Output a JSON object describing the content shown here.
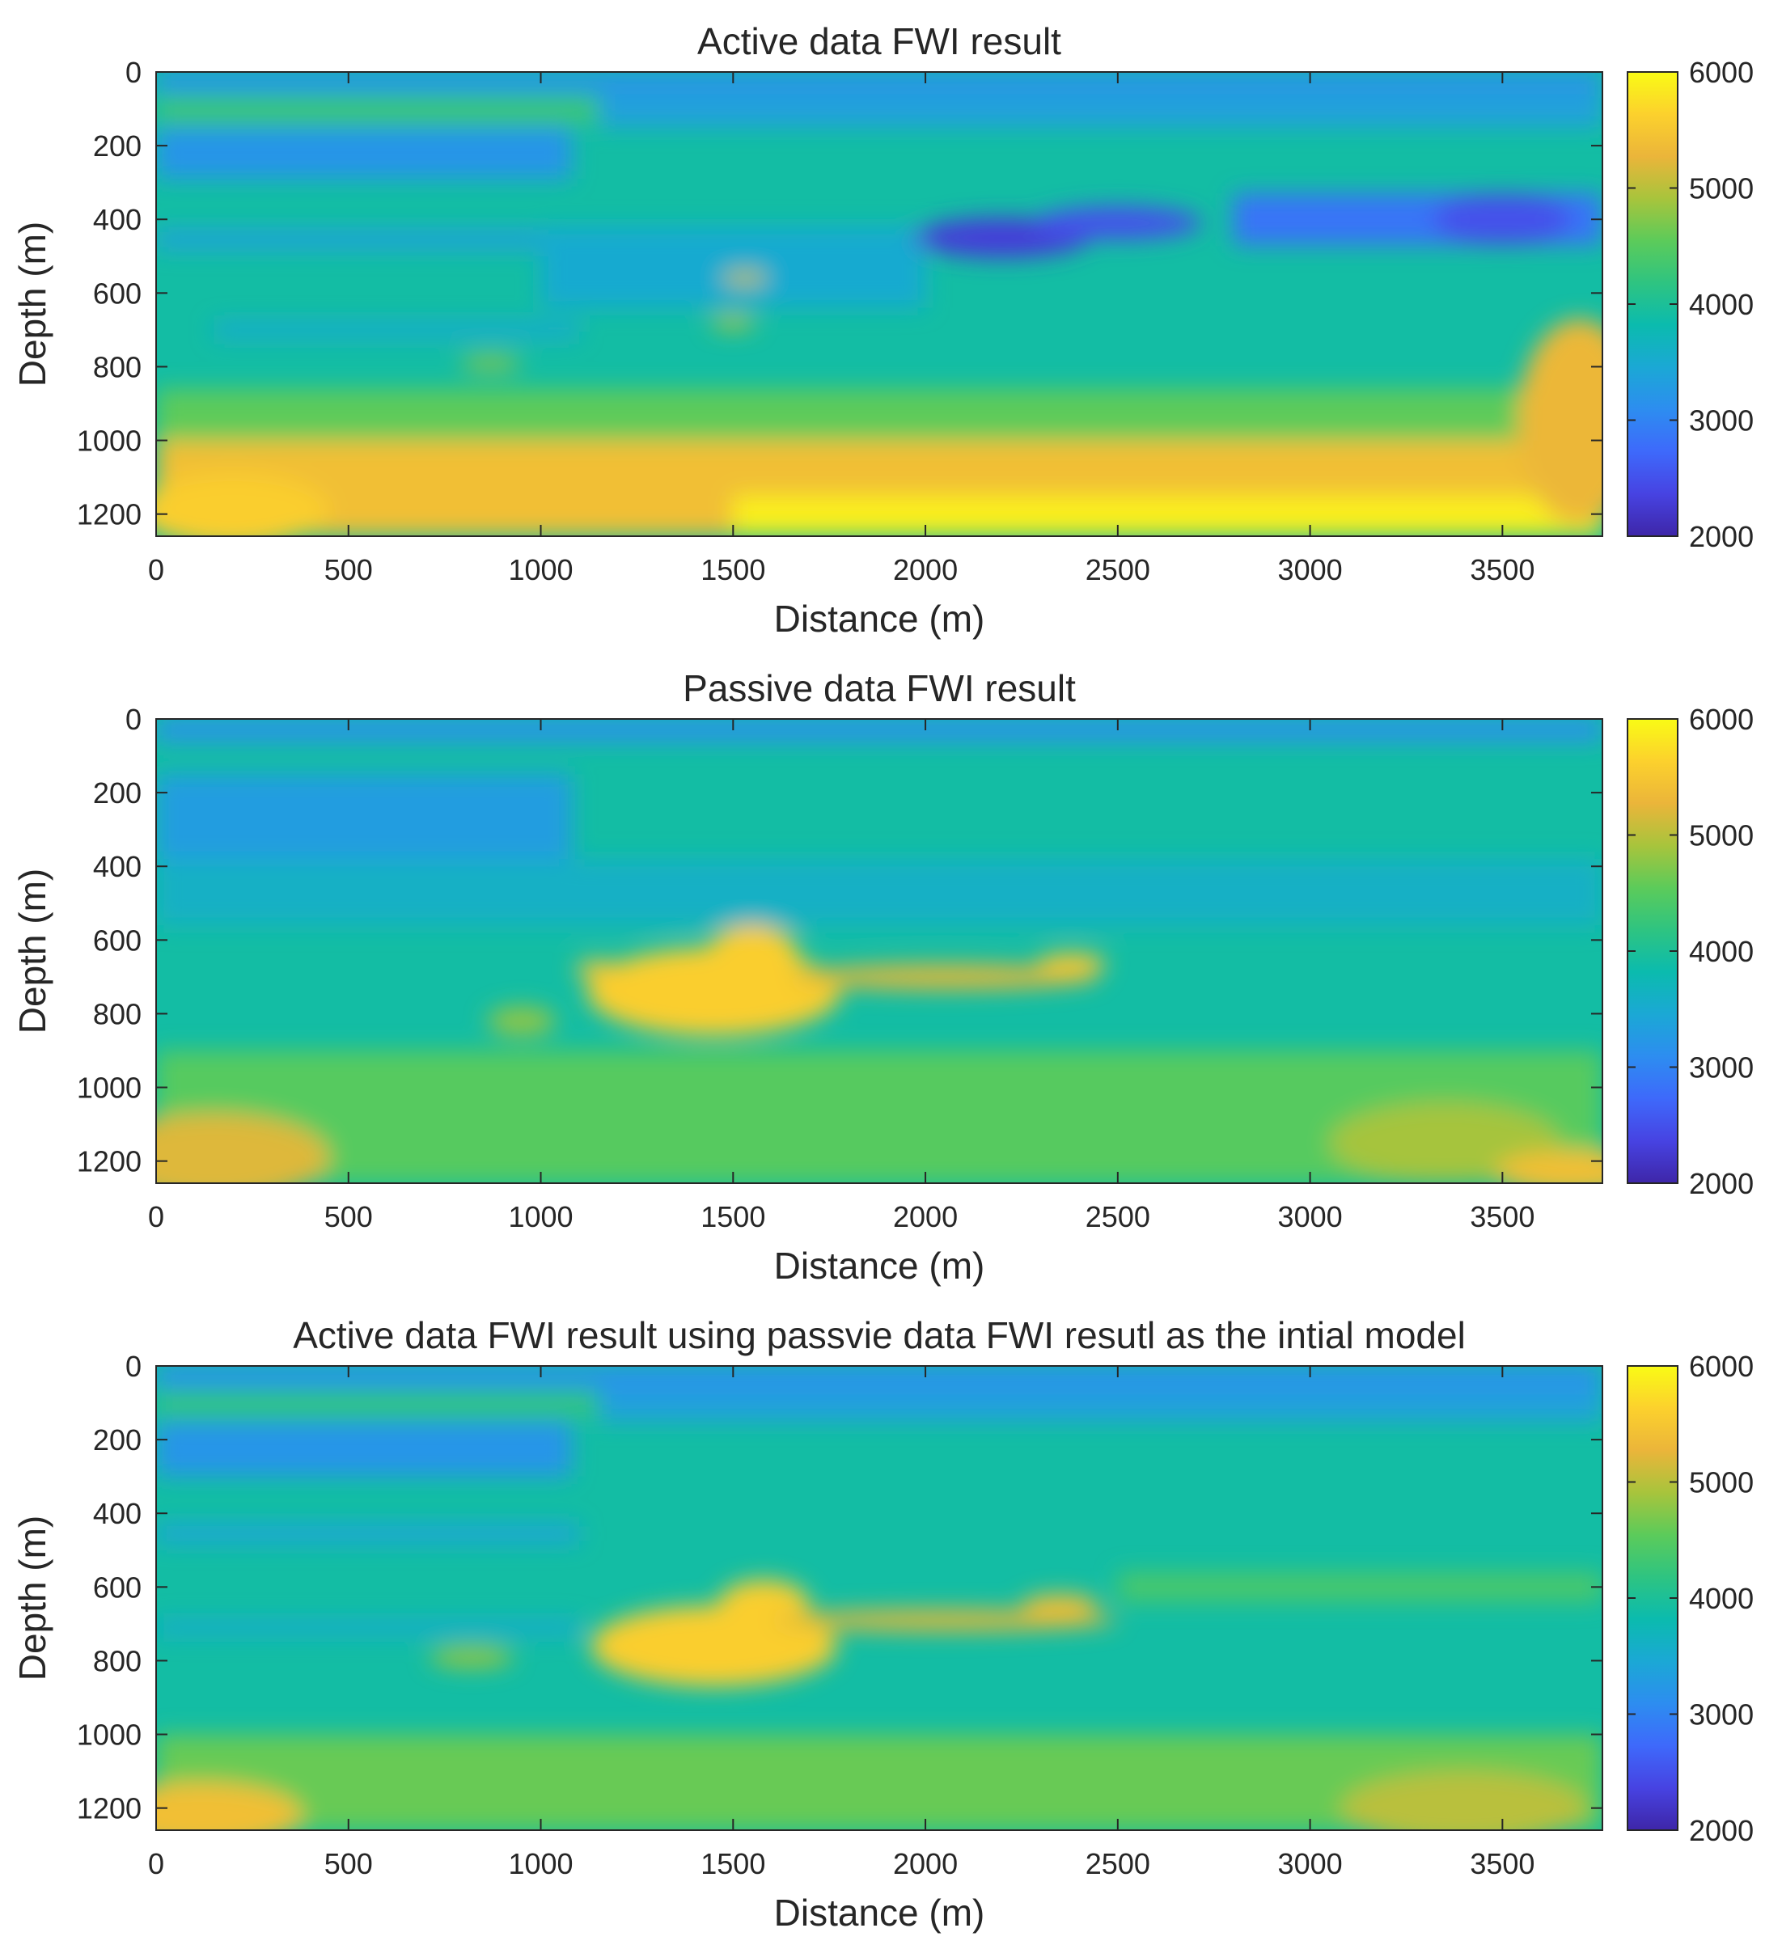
{
  "colormap": [
    "#3e26a8",
    "#4743e2",
    "#3e69fb",
    "#2d8df0",
    "#1ba8d5",
    "#0bbbae",
    "#2ec481",
    "#5ccb5a",
    "#a8c43c",
    "#ebb53a",
    "#fcd12d",
    "#f9fb15"
  ],
  "chart_data": [
    {
      "type": "heatmap",
      "title": "Active data FWI result",
      "xlabel": "Distance (m)",
      "ylabel": "Depth (m)",
      "xlim": [
        0,
        3760
      ],
      "ylim": [
        0,
        1260
      ],
      "y_reversed": true,
      "x_ticks": [
        0,
        500,
        1000,
        1500,
        2000,
        2500,
        3000,
        3500
      ],
      "y_ticks": [
        0,
        200,
        400,
        600,
        800,
        1000,
        1200
      ],
      "colorbar": {
        "min": 2000,
        "max": 6000,
        "ticks": [
          2000,
          3000,
          4000,
          5000,
          6000
        ]
      },
      "background_value": 3900,
      "features": [
        {
          "kind": "band",
          "x0": 0,
          "x1": 3760,
          "y0": 0,
          "y1": 55,
          "value": 3150
        },
        {
          "kind": "band",
          "x0": 0,
          "x1": 1150,
          "y0": 70,
          "y1": 140,
          "value": 4300
        },
        {
          "kind": "band",
          "x0": 1150,
          "x1": 3760,
          "y0": 60,
          "y1": 150,
          "value": 3350
        },
        {
          "kind": "band",
          "x0": 0,
          "x1": 1080,
          "y0": 150,
          "y1": 290,
          "value": 3200
        },
        {
          "kind": "band",
          "x0": 0,
          "x1": 1100,
          "y0": 430,
          "y1": 480,
          "value": 3350
        },
        {
          "kind": "band",
          "x0": 150,
          "x1": 1100,
          "y0": 680,
          "y1": 720,
          "value": 3450
        },
        {
          "kind": "band",
          "x0": 1000,
          "x1": 2000,
          "y0": 420,
          "y1": 640,
          "value": 3500
        },
        {
          "kind": "blob",
          "x": 2200,
          "y": 450,
          "rx": 230,
          "ry": 55,
          "value": 2300
        },
        {
          "kind": "blob",
          "x": 2500,
          "y": 410,
          "rx": 220,
          "ry": 45,
          "value": 2500
        },
        {
          "kind": "band",
          "x0": 2800,
          "x1": 3760,
          "y0": 330,
          "y1": 470,
          "value": 2850
        },
        {
          "kind": "blob",
          "x": 3500,
          "y": 400,
          "rx": 180,
          "ry": 70,
          "value": 2500
        },
        {
          "kind": "blob",
          "x": 1530,
          "y": 560,
          "rx": 60,
          "ry": 20,
          "value": 5000
        },
        {
          "kind": "blob",
          "x": 1500,
          "y": 680,
          "rx": 60,
          "ry": 20,
          "value": 4900
        },
        {
          "kind": "blob",
          "x": 870,
          "y": 790,
          "rx": 80,
          "ry": 20,
          "value": 4800
        },
        {
          "kind": "band",
          "x0": 0,
          "x1": 3760,
          "y0": 860,
          "y1": 1000,
          "value": 4550
        },
        {
          "kind": "band",
          "x0": 0,
          "x1": 3760,
          "y0": 1000,
          "y1": 1260,
          "value": 5400
        },
        {
          "kind": "blob",
          "x": 200,
          "y": 1190,
          "rx": 250,
          "ry": 100,
          "value": 5600
        },
        {
          "kind": "band",
          "x0": 1500,
          "x1": 3760,
          "y0": 1150,
          "y1": 1260,
          "value": 5900
        },
        {
          "kind": "blob",
          "x": 3700,
          "y": 950,
          "rx": 160,
          "ry": 280,
          "value": 5300
        }
      ]
    },
    {
      "type": "heatmap",
      "title": "Passive data FWI result",
      "xlabel": "Distance (m)",
      "ylabel": "Depth (m)",
      "xlim": [
        0,
        3760
      ],
      "ylim": [
        0,
        1260
      ],
      "y_reversed": true,
      "x_ticks": [
        0,
        500,
        1000,
        1500,
        2000,
        2500,
        3000,
        3500
      ],
      "y_ticks": [
        0,
        200,
        400,
        600,
        800,
        1000,
        1200
      ],
      "colorbar": {
        "min": 2000,
        "max": 6000,
        "ticks": [
          2000,
          3000,
          4000,
          5000,
          6000
        ]
      },
      "background_value": 3900,
      "features": [
        {
          "kind": "band",
          "x0": 0,
          "x1": 3760,
          "y0": 0,
          "y1": 60,
          "value": 3150
        },
        {
          "kind": "band",
          "x0": 0,
          "x1": 1080,
          "y0": 150,
          "y1": 380,
          "value": 3300
        },
        {
          "kind": "band",
          "x0": 0,
          "x1": 3760,
          "y0": 380,
          "y1": 560,
          "value": 3600
        },
        {
          "kind": "blob",
          "x": 1450,
          "y": 740,
          "rx": 330,
          "ry": 120,
          "value": 5600
        },
        {
          "kind": "blob",
          "x": 1550,
          "y": 640,
          "rx": 120,
          "ry": 80,
          "value": 5600
        },
        {
          "kind": "blob",
          "x": 2050,
          "y": 700,
          "rx": 400,
          "ry": 35,
          "value": 5200
        },
        {
          "kind": "blob",
          "x": 2380,
          "y": 665,
          "rx": 90,
          "ry": 30,
          "value": 5500
        },
        {
          "kind": "blob",
          "x": 1150,
          "y": 680,
          "rx": 60,
          "ry": 25,
          "value": 5500
        },
        {
          "kind": "blob",
          "x": 950,
          "y": 820,
          "rx": 90,
          "ry": 40,
          "value": 4800
        },
        {
          "kind": "band",
          "x0": 0,
          "x1": 3760,
          "y0": 900,
          "y1": 1260,
          "value": 4500
        },
        {
          "kind": "blob",
          "x": 150,
          "y": 1190,
          "rx": 300,
          "ry": 120,
          "value": 5200
        },
        {
          "kind": "blob",
          "x": 3350,
          "y": 1150,
          "rx": 300,
          "ry": 110,
          "value": 4900
        },
        {
          "kind": "blob",
          "x": 3680,
          "y": 1230,
          "rx": 200,
          "ry": 60,
          "value": 5400
        }
      ]
    },
    {
      "type": "heatmap",
      "title": "Active data FWI result using passvie data FWI resutl as the intial model",
      "xlabel": "Distance (m)",
      "ylabel": "Depth (m)",
      "xlim": [
        0,
        3760
      ],
      "ylim": [
        0,
        1260
      ],
      "y_reversed": true,
      "x_ticks": [
        0,
        500,
        1000,
        1500,
        2000,
        2500,
        3000,
        3500
      ],
      "y_ticks": [
        0,
        200,
        400,
        600,
        800,
        1000,
        1200
      ],
      "colorbar": {
        "min": 2000,
        "max": 6000,
        "ticks": [
          2000,
          3000,
          4000,
          5000,
          6000
        ]
      },
      "background_value": 3900,
      "features": [
        {
          "kind": "band",
          "x0": 0,
          "x1": 3760,
          "y0": 0,
          "y1": 60,
          "value": 3150
        },
        {
          "kind": "band",
          "x0": 0,
          "x1": 1150,
          "y0": 70,
          "y1": 140,
          "value": 4200
        },
        {
          "kind": "band",
          "x0": 1150,
          "x1": 3760,
          "y0": 60,
          "y1": 150,
          "value": 3350
        },
        {
          "kind": "band",
          "x0": 0,
          "x1": 1080,
          "y0": 150,
          "y1": 300,
          "value": 3200
        },
        {
          "kind": "band",
          "x0": 0,
          "x1": 1100,
          "y0": 430,
          "y1": 480,
          "value": 3400
        },
        {
          "kind": "band",
          "x0": 0,
          "x1": 1100,
          "y0": 690,
          "y1": 730,
          "value": 3500
        },
        {
          "kind": "blob",
          "x": 1450,
          "y": 760,
          "rx": 320,
          "ry": 110,
          "value": 5600
        },
        {
          "kind": "blob",
          "x": 1580,
          "y": 650,
          "rx": 120,
          "ry": 70,
          "value": 5600
        },
        {
          "kind": "blob",
          "x": 2050,
          "y": 690,
          "rx": 450,
          "ry": 30,
          "value": 5200
        },
        {
          "kind": "blob",
          "x": 2350,
          "y": 650,
          "rx": 100,
          "ry": 30,
          "value": 5400
        },
        {
          "kind": "blob",
          "x": 820,
          "y": 790,
          "rx": 110,
          "ry": 30,
          "value": 4800
        },
        {
          "kind": "band",
          "x0": 2500,
          "x1": 3760,
          "y0": 560,
          "y1": 640,
          "value": 4400
        },
        {
          "kind": "band",
          "x0": 0,
          "x1": 3760,
          "y0": 1000,
          "y1": 1260,
          "value": 4600
        },
        {
          "kind": "blob",
          "x": 120,
          "y": 1220,
          "rx": 260,
          "ry": 90,
          "value": 5400
        },
        {
          "kind": "blob",
          "x": 3400,
          "y": 1200,
          "rx": 320,
          "ry": 100,
          "value": 5000
        }
      ]
    }
  ]
}
